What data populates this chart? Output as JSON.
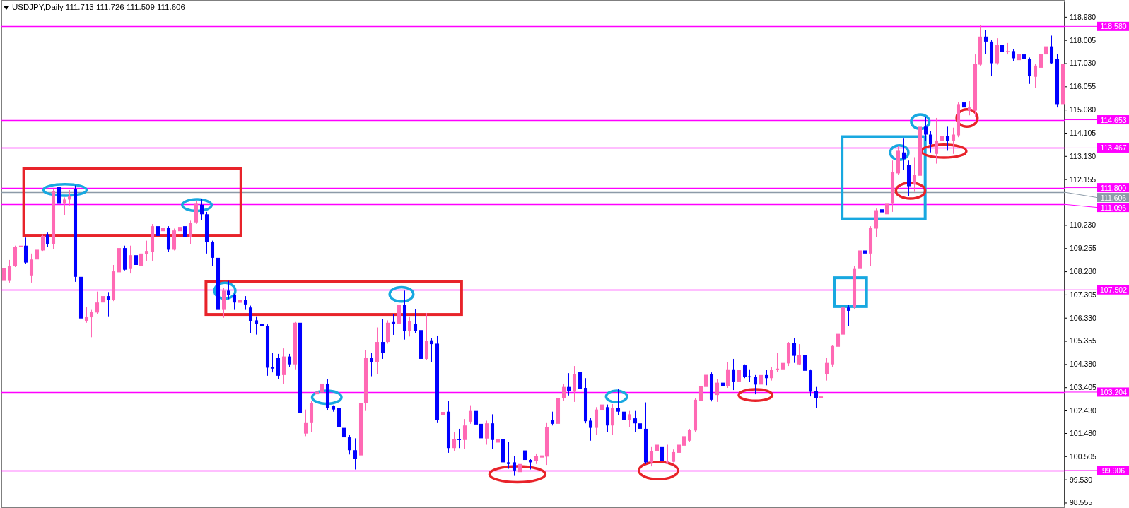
{
  "chart_data": {
    "type": "candlestick",
    "title": "USDJPY,Daily 111.713 111.726 111.509 111.606",
    "categories": [
      null,
      null,
      null,
      null,
      null,
      null,
      null,
      null,
      null,
      null,
      null,
      null,
      null,
      null,
      null,
      null,
      null,
      null,
      null,
      null,
      null,
      null,
      null,
      null,
      null,
      null,
      null,
      null,
      null,
      null,
      null,
      null,
      null,
      null,
      null,
      null,
      null,
      null,
      null,
      null,
      null,
      null,
      null,
      null,
      null,
      null,
      null,
      null,
      null,
      null,
      null,
      null,
      null,
      null,
      null,
      null,
      null,
      null,
      null,
      null,
      null,
      null,
      null,
      null,
      null,
      null,
      null,
      null,
      null,
      null,
      null,
      null,
      null,
      null,
      null,
      null,
      null,
      null,
      null,
      null,
      null,
      null,
      null,
      null,
      null,
      null,
      null,
      null,
      null,
      null,
      null,
      null,
      null,
      null,
      null,
      null,
      null,
      null,
      null,
      null,
      null,
      null,
      null,
      null,
      null,
      null,
      null,
      null,
      null,
      null,
      null,
      null,
      null,
      null,
      null,
      null,
      null,
      null,
      null,
      null,
      null,
      null,
      null,
      null,
      null,
      null,
      null,
      null,
      null,
      null,
      null,
      null,
      null,
      null,
      null,
      null,
      null,
      null,
      null,
      null,
      null,
      null,
      null,
      null,
      null,
      null,
      null,
      null,
      null,
      null,
      null,
      null,
      null,
      null,
      null,
      null,
      null,
      null,
      null,
      null,
      null,
      null,
      null,
      null,
      null,
      null,
      null,
      null,
      null,
      null,
      null,
      null,
      null,
      null,
      null,
      null,
      null,
      null,
      null,
      null,
      null,
      null,
      null,
      null,
      null,
      null,
      null,
      null,
      null,
      null,
      null,
      null,
      null,
      null
    ],
    "ohlc": [
      [
        107.88,
        108.49,
        107.81,
        108.42
      ],
      [
        107.88,
        108.76,
        107.81,
        108.51
      ],
      [
        108.49,
        109.36,
        108.46,
        109.3
      ],
      [
        109.3,
        109.36,
        108.89,
        109.36
      ],
      [
        109.36,
        109.7,
        108.59,
        108.65
      ],
      [
        108.11,
        109.03,
        107.81,
        108.78
      ],
      [
        108.78,
        109.3,
        108.73,
        109.19
      ],
      [
        109.16,
        109.84,
        109.14,
        109.77
      ],
      [
        109.84,
        109.91,
        109.3,
        109.43
      ],
      [
        109.43,
        111.73,
        109.23,
        111.66
      ],
      [
        111.82,
        111.86,
        110.78,
        111.12
      ],
      [
        111.12,
        111.39,
        110.65,
        111.3
      ],
      [
        111.3,
        111.7,
        111.05,
        111.43
      ],
      [
        111.73,
        111.89,
        107.84,
        108.05
      ],
      [
        108.05,
        108.15,
        106.24,
        106.3
      ],
      [
        106.19,
        106.77,
        106.12,
        106.37
      ],
      [
        106.35,
        106.66,
        105.51,
        106.57
      ],
      [
        106.55,
        107.43,
        106.49,
        106.97
      ],
      [
        106.97,
        107.47,
        106.76,
        107.24
      ],
      [
        107.24,
        107.41,
        106.39,
        107.07
      ],
      [
        107.07,
        108.55,
        107.03,
        108.28
      ],
      [
        108.24,
        109.32,
        108.22,
        109.26
      ],
      [
        109.26,
        109.36,
        108.32,
        108.35
      ],
      [
        108.38,
        109.36,
        108.19,
        108.96
      ],
      [
        108.96,
        109.54,
        108.49,
        108.55
      ],
      [
        108.51,
        109.09,
        108.46,
        109.03
      ],
      [
        109.0,
        109.57,
        108.73,
        109.14
      ],
      [
        109.09,
        110.27,
        108.73,
        110.18
      ],
      [
        110.18,
        110.38,
        109.68,
        109.77
      ],
      [
        109.97,
        110.54,
        109.84,
        110.11
      ],
      [
        110.11,
        110.18,
        109.09,
        109.19
      ],
      [
        109.19,
        110.08,
        109.16,
        110.0
      ],
      [
        109.97,
        110.2,
        109.84,
        110.15
      ],
      [
        110.18,
        110.24,
        109.36,
        109.73
      ],
      [
        109.73,
        110.41,
        109.43,
        110.31
      ],
      [
        110.34,
        111.26,
        110.28,
        111.12
      ],
      [
        111.08,
        111.32,
        110.45,
        110.68
      ],
      [
        110.68,
        110.78,
        109.03,
        109.5
      ],
      [
        109.5,
        109.57,
        108.49,
        108.85
      ],
      [
        108.85,
        109.09,
        106.53,
        106.66
      ],
      [
        106.66,
        107.57,
        106.33,
        107.47
      ],
      [
        107.47,
        107.88,
        107.11,
        107.3
      ],
      [
        107.3,
        107.34,
        106.66,
        106.97
      ],
      [
        106.96,
        107.14,
        106.22,
        107.07
      ],
      [
        107.07,
        107.24,
        106.66,
        106.89
      ],
      [
        106.76,
        106.84,
        105.68,
        106.19
      ],
      [
        106.22,
        106.39,
        105.62,
        106.08
      ],
      [
        106.08,
        106.35,
        105.41,
        105.99
      ],
      [
        105.99,
        106.05,
        103.89,
        104.23
      ],
      [
        104.26,
        104.84,
        104.03,
        104.19
      ],
      [
        104.64,
        104.81,
        103.76,
        103.89
      ],
      [
        103.92,
        105.04,
        103.56,
        104.7
      ],
      [
        104.7,
        104.81,
        104.27,
        104.37
      ],
      [
        104.37,
        106.15,
        104.16,
        106.12
      ],
      [
        106.12,
        106.8,
        98.96,
        102.34
      ],
      [
        101.46,
        102.47,
        101.35,
        101.93
      ],
      [
        101.93,
        102.84,
        101.53,
        102.74
      ],
      [
        103.11,
        103.56,
        102.14,
        103.22
      ],
      [
        103.19,
        103.96,
        102.34,
        103.56
      ],
      [
        103.56,
        103.76,
        102.43,
        102.54
      ],
      [
        102.61,
        102.65,
        102.38,
        102.47
      ],
      [
        102.54,
        102.61,
        101.43,
        101.73
      ],
      [
        101.7,
        101.76,
        100.18,
        101.3
      ],
      [
        101.3,
        101.39,
        100.58,
        100.76
      ],
      [
        100.76,
        101.26,
        99.95,
        100.41
      ],
      [
        100.54,
        102.88,
        100.52,
        102.74
      ],
      [
        102.74,
        104.97,
        102.41,
        104.64
      ],
      [
        104.64,
        104.84,
        103.87,
        104.46
      ],
      [
        104.46,
        105.92,
        103.96,
        105.31
      ],
      [
        105.31,
        106.28,
        104.6,
        104.84
      ],
      [
        105.31,
        106.22,
        105.24,
        106.12
      ],
      [
        106.15,
        106.49,
        105.61,
        106.08
      ],
      [
        106.08,
        107.0,
        105.81,
        106.87
      ],
      [
        106.87,
        107.47,
        105.41,
        105.78
      ],
      [
        105.78,
        106.39,
        105.54,
        106.19
      ],
      [
        106.08,
        106.7,
        105.68,
        105.78
      ],
      [
        105.81,
        105.89,
        103.96,
        104.6
      ],
      [
        104.6,
        106.53,
        104.57,
        105.35
      ],
      [
        105.38,
        105.49,
        104.46,
        105.22
      ],
      [
        105.24,
        105.58,
        101.93,
        102.03
      ],
      [
        102.25,
        102.68,
        102.0,
        102.37
      ],
      [
        102.38,
        102.84,
        100.65,
        100.85
      ],
      [
        100.85,
        101.53,
        100.72,
        101.22
      ],
      [
        101.23,
        101.66,
        100.85,
        101.19
      ],
      [
        101.19,
        102.07,
        100.81,
        101.8
      ],
      [
        101.96,
        102.65,
        101.87,
        102.41
      ],
      [
        102.41,
        102.5,
        101.76,
        101.84
      ],
      [
        101.87,
        101.93,
        100.92,
        101.26
      ],
      [
        101.25,
        102.0,
        100.99,
        101.89
      ],
      [
        101.89,
        102.27,
        100.81,
        101.19
      ],
      [
        101.08,
        101.43,
        100.89,
        101.22
      ],
      [
        101.23,
        101.26,
        99.57,
        100.25
      ],
      [
        100.25,
        101.12,
        99.98,
        100.18
      ],
      [
        100.25,
        100.52,
        99.68,
        99.91
      ],
      [
        99.84,
        100.38,
        99.81,
        100.18
      ],
      [
        100.75,
        100.92,
        100.25,
        100.35
      ],
      [
        100.35,
        100.38,
        99.95,
        100.25
      ],
      [
        100.31,
        100.62,
        100.18,
        100.52
      ],
      [
        100.45,
        100.62,
        100.25,
        100.54
      ],
      [
        100.49,
        101.93,
        100.14,
        101.73
      ],
      [
        102.03,
        102.38,
        101.8,
        101.87
      ],
      [
        101.87,
        103.08,
        101.7,
        102.95
      ],
      [
        102.95,
        103.56,
        102.84,
        103.42
      ],
      [
        103.42,
        104.0,
        103.06,
        103.25
      ],
      [
        103.22,
        104.3,
        102.79,
        103.96
      ],
      [
        104.06,
        104.14,
        103.11,
        103.35
      ],
      [
        103.38,
        103.79,
        101.89,
        101.98
      ],
      [
        102.0,
        102.11,
        101.16,
        101.7
      ],
      [
        101.7,
        102.57,
        101.39,
        102.47
      ],
      [
        102.43,
        103.02,
        101.89,
        102.68
      ],
      [
        102.57,
        102.68,
        101.53,
        101.8
      ],
      [
        101.8,
        102.7,
        101.39,
        102.54
      ],
      [
        102.52,
        103.35,
        102.25,
        102.38
      ],
      [
        102.38,
        102.74,
        101.87,
        102.03
      ],
      [
        102.03,
        102.41,
        101.73,
        102.27
      ],
      [
        102.1,
        102.41,
        101.53,
        101.89
      ],
      [
        101.89,
        102.03,
        101.53,
        101.66
      ],
      [
        101.66,
        102.77,
        100.18,
        100.25
      ],
      [
        100.25,
        100.92,
        100.08,
        100.72
      ],
      [
        100.72,
        101.26,
        100.65,
        100.99
      ],
      [
        100.92,
        101.06,
        100.22,
        100.31
      ],
      [
        100.25,
        100.99,
        100.18,
        100.31
      ],
      [
        100.27,
        100.79,
        100.25,
        100.68
      ],
      [
        100.65,
        101.8,
        100.62,
        100.99
      ],
      [
        100.95,
        101.76,
        100.89,
        101.35
      ],
      [
        101.16,
        101.66,
        101.12,
        101.62
      ],
      [
        101.59,
        102.95,
        101.53,
        102.88
      ],
      [
        102.84,
        103.62,
        102.81,
        103.46
      ],
      [
        103.42,
        104.14,
        103.35,
        103.93
      ],
      [
        103.96,
        104.03,
        102.81,
        102.88
      ],
      [
        103.08,
        103.76,
        102.79,
        103.6
      ],
      [
        103.6,
        104.03,
        103.11,
        103.46
      ],
      [
        103.46,
        104.46,
        103.38,
        104.16
      ],
      [
        104.16,
        104.6,
        103.29,
        103.65
      ],
      [
        103.65,
        104.41,
        103.56,
        104.14
      ],
      [
        104.33,
        104.37,
        103.79,
        103.83
      ],
      [
        103.87,
        104.16,
        103.62,
        103.83
      ],
      [
        103.83,
        103.92,
        103.11,
        103.52
      ],
      [
        103.52,
        104.03,
        103.33,
        103.92
      ],
      [
        103.92,
        104.14,
        103.49,
        103.79
      ],
      [
        103.79,
        104.27,
        103.69,
        104.14
      ],
      [
        104.14,
        104.84,
        104.06,
        104.19
      ],
      [
        104.16,
        104.54,
        104.0,
        104.43
      ],
      [
        104.41,
        105.31,
        104.3,
        105.27
      ],
      [
        105.27,
        105.49,
        104.43,
        104.73
      ],
      [
        104.37,
        105.22,
        104.33,
        104.77
      ],
      [
        104.77,
        105.08,
        103.76,
        104.1
      ],
      [
        104.12,
        104.16,
        103.02,
        103.22
      ],
      [
        103.24,
        103.42,
        102.52,
        102.95
      ],
      [
        102.95,
        103.33,
        102.81,
        103.02
      ],
      [
        103.96,
        104.64,
        103.69,
        104.43
      ],
      [
        104.37,
        105.18,
        104.27,
        105.14
      ],
      [
        105.11,
        105.85,
        101.16,
        105.65
      ],
      [
        105.62,
        106.87,
        104.95,
        106.76
      ],
      [
        106.76,
        106.87,
        105.99,
        106.62
      ],
      [
        106.76,
        108.51,
        106.7,
        108.38
      ],
      [
        108.38,
        109.3,
        107.7,
        109.16
      ],
      [
        109.16,
        109.73,
        108.76,
        109.03
      ],
      [
        109.03,
        110.18,
        108.51,
        110.11
      ],
      [
        110.08,
        110.92,
        109.73,
        110.85
      ],
      [
        110.89,
        111.32,
        110.45,
        110.76
      ],
      [
        110.68,
        111.32,
        110.24,
        111.12
      ],
      [
        111.12,
        112.94,
        110.78,
        112.47
      ],
      [
        112.4,
        113.55,
        112.34,
        113.35
      ],
      [
        113.28,
        113.86,
        112.54,
        113.01
      ],
      [
        112.74,
        112.94,
        111.46,
        111.86
      ],
      [
        111.93,
        113.08,
        111.62,
        112.34
      ],
      [
        112.3,
        114.5,
        112.2,
        114.36
      ],
      [
        114.36,
        114.77,
        113.76,
        114.03
      ],
      [
        114.03,
        114.19,
        113.28,
        113.62
      ],
      [
        113.22,
        114.73,
        112.81,
        113.78
      ],
      [
        113.76,
        114.19,
        113.49,
        113.96
      ],
      [
        113.96,
        114.36,
        113.35,
        113.76
      ],
      [
        113.76,
        114.32,
        113.22,
        114.03
      ],
      [
        114.0,
        115.38,
        113.92,
        115.31
      ],
      [
        115.38,
        116.12,
        114.81,
        115.17
      ],
      [
        115.04,
        115.44,
        114.84,
        115.17
      ],
      [
        115.04,
        117.4,
        114.77,
        117.0
      ],
      [
        116.97,
        118.62,
        116.93,
        118.15
      ],
      [
        118.15,
        118.42,
        117.43,
        117.94
      ],
      [
        117.94,
        118.01,
        116.48,
        117.03
      ],
      [
        117.03,
        118.08,
        116.97,
        117.81
      ],
      [
        117.81,
        118.08,
        117.07,
        117.51
      ],
      [
        117.51,
        117.88,
        117.4,
        117.54
      ],
      [
        117.54,
        117.61,
        117.11,
        117.24
      ],
      [
        117.16,
        117.61,
        117.13,
        117.43
      ],
      [
        117.4,
        117.78,
        117.03,
        117.2
      ],
      [
        117.2,
        117.27,
        116.16,
        116.48
      ],
      [
        116.46,
        117.0,
        115.98,
        116.93
      ],
      [
        116.84,
        117.47,
        116.8,
        117.43
      ],
      [
        117.4,
        118.55,
        117.16,
        117.74
      ],
      [
        117.74,
        118.19,
        117.0,
        117.03
      ],
      [
        117.2,
        117.43,
        115.17,
        115.31
      ],
      [
        115.31,
        117.2,
        115.04,
        117.0
      ]
    ],
    "colors": [
      "#ff69b4",
      "#ff69b4",
      "#ff69b4",
      "#ff69b4",
      "#0000ff",
      "#ff69b4",
      "#ff69b4",
      "#ff69b4",
      "#0000ff",
      "#ff69b4",
      "#0000ff",
      "#ff69b4",
      "#ff69b4",
      "#0000ff",
      "#0000ff",
      "#ff69b4",
      "#ff69b4",
      "#ff69b4",
      "#ff69b4",
      "#0000ff",
      "#ff69b4",
      "#ff69b4",
      "#0000ff",
      "#ff69b4",
      "#0000ff",
      "#ff69b4",
      "#ff69b4",
      "#ff69b4",
      "#0000ff",
      "#ff69b4",
      "#0000ff",
      "#ff69b4",
      "#ff69b4",
      "#0000ff",
      "#ff69b4",
      "#ff69b4",
      "#0000ff",
      "#0000ff",
      "#0000ff",
      "#0000ff",
      "#ff69b4",
      "#0000ff",
      "#0000ff",
      "#ff69b4",
      "#0000ff",
      "#0000ff",
      "#0000ff",
      "#0000ff",
      "#0000ff",
      "#0000ff",
      "#0000ff",
      "#ff69b4",
      "#0000ff",
      "#ff69b4",
      "#0000ff",
      "#ff69b4",
      "#ff69b4",
      "#ff69b4",
      "#ff69b4",
      "#0000ff",
      "#0000ff",
      "#0000ff",
      "#0000ff",
      "#0000ff",
      "#0000ff",
      "#ff69b4",
      "#ff69b4",
      "#0000ff",
      "#ff69b4",
      "#0000ff",
      "#ff69b4",
      "#0000ff",
      "#ff69b4",
      "#0000ff",
      "#ff69b4",
      "#0000ff",
      "#0000ff",
      "#ff69b4",
      "#0000ff",
      "#0000ff",
      "#ff69b4",
      "#0000ff",
      "#ff69b4",
      "#0000ff",
      "#ff69b4",
      "#ff69b4",
      "#0000ff",
      "#0000ff",
      "#ff69b4",
      "#0000ff",
      "#ff69b4",
      "#0000ff",
      "#0000ff",
      "#0000ff",
      "#ff69b4",
      "#0000ff",
      "#0000ff",
      "#ff69b4",
      "#ff69b4",
      "#ff69b4",
      "#0000ff",
      "#ff69b4",
      "#ff69b4",
      "#0000ff",
      "#ff69b4",
      "#0000ff",
      "#0000ff",
      "#0000ff",
      "#ff69b4",
      "#ff69b4",
      "#0000ff",
      "#ff69b4",
      "#0000ff",
      "#0000ff",
      "#ff69b4",
      "#0000ff",
      "#0000ff",
      "#0000ff",
      "#ff69b4",
      "#ff69b4",
      "#0000ff",
      "#ff69b4",
      "#ff69b4",
      "#ff69b4",
      "#ff69b4",
      "#ff69b4",
      "#ff69b4",
      "#ff69b4",
      "#ff69b4",
      "#0000ff",
      "#ff69b4",
      "#0000ff",
      "#ff69b4",
      "#0000ff",
      "#ff69b4",
      "#0000ff",
      "#0000ff",
      "#0000ff",
      "#ff69b4",
      "#0000ff",
      "#ff69b4",
      "#ff69b4",
      "#ff69b4",
      "#ff69b4",
      "#0000ff",
      "#ff69b4",
      "#0000ff",
      "#0000ff",
      "#0000ff",
      "#ff69b4",
      "#ff69b4",
      "#ff69b4",
      "#ff69b4",
      "#ff69b4",
      "#0000ff",
      "#ff69b4",
      "#ff69b4",
      "#0000ff",
      "#ff69b4",
      "#ff69b4",
      "#0000ff",
      "#ff69b4",
      "#ff69b4",
      "#ff69b4",
      "#0000ff",
      "#0000ff",
      "#ff69b4",
      "#ff69b4",
      "#0000ff",
      "#0000ff",
      "#ff69b4",
      "#ff69b4",
      "#0000ff",
      "#ff69b4",
      "#ff69b4",
      "#0000ff",
      "#ff69b4",
      "#ff69b4",
      "#ff69b4",
      "#0000ff",
      "#0000ff",
      "#ff69b4",
      "#0000ff",
      "#ff69b4",
      "#0000ff",
      "#ff69b4",
      "#0000ff",
      "#0000ff",
      "#ff69b4",
      "#ff69b4",
      "#ff69b4",
      "#0000ff",
      "#0000ff",
      "#ff69b4"
    ],
    "ylim": [
      98.45,
      119.6
    ],
    "yticks": [
      {
        "value": 118.98,
        "label": "118.980"
      },
      {
        "value": 118.005,
        "label": "118.005"
      },
      {
        "value": 117.03,
        "label": "117.030"
      },
      {
        "value": 116.055,
        "label": "116.055"
      },
      {
        "value": 115.08,
        "label": "115.080"
      },
      {
        "value": 114.105,
        "label": "114.105"
      },
      {
        "value": 113.13,
        "label": "113.130"
      },
      {
        "value": 112.155,
        "label": "112.155"
      },
      {
        "value": 110.23,
        "label": "110.230"
      },
      {
        "value": 109.255,
        "label": "109.255"
      },
      {
        "value": 108.28,
        "label": "108.280"
      },
      {
        "value": 107.305,
        "label": "107.305"
      },
      {
        "value": 106.33,
        "label": "106.330"
      },
      {
        "value": 105.355,
        "label": "105.355"
      },
      {
        "value": 104.38,
        "label": "104.380"
      },
      {
        "value": 103.405,
        "label": "103.405"
      },
      {
        "value": 102.43,
        "label": "102.430"
      },
      {
        "value": 101.48,
        "label": "101.480"
      },
      {
        "value": 100.505,
        "label": "100.505"
      },
      {
        "value": 99.53,
        "label": "99.530"
      },
      {
        "value": 98.555,
        "label": "98.555"
      }
    ],
    "tick_labels": "y",
    "ref_lines": [
      {
        "axis": "y",
        "value": 118.58,
        "label": "118.580",
        "color": "#ff00ff"
      },
      {
        "axis": "y",
        "value": 114.653,
        "label": "114.653",
        "color": "#ff00ff"
      },
      {
        "axis": "y",
        "value": 113.467,
        "label": "113.467",
        "color": "#ff00ff"
      },
      {
        "axis": "y",
        "value": 111.8,
        "label": "111.800",
        "color": "#ff00ff"
      },
      {
        "axis": "y",
        "value": 111.606,
        "label": "111.606",
        "color": "#8c9aa8"
      },
      {
        "axis": "y",
        "value": 111.096,
        "label": "111.096",
        "color": "#ff00ff"
      },
      {
        "axis": "y",
        "value": 107.502,
        "label": "107.502",
        "color": "#ff00ff"
      },
      {
        "axis": "y",
        "value": 103.204,
        "label": "103.204",
        "color": "#ff00ff"
      },
      {
        "axis": "y",
        "value": 99.906,
        "label": "99.906",
        "color": "#ff00ff"
      }
    ]
  }
}
